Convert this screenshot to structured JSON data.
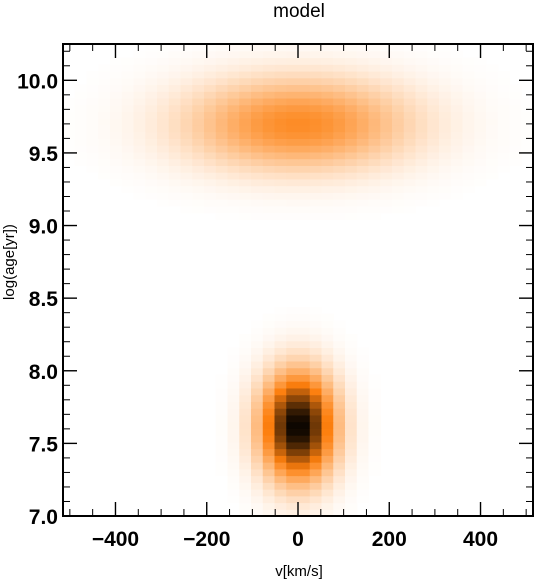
{
  "chart_data": {
    "type": "heatmap",
    "title": "model",
    "xlabel": "v[km/s]",
    "ylabel": "log(age[yr])",
    "xlim": [
      -515,
      515
    ],
    "ylim": [
      7.0,
      10.25
    ],
    "xticks": [
      -400,
      -200,
      0,
      200,
      400
    ],
    "xtick_labels": [
      "−400",
      "−200",
      "0",
      "200",
      "400"
    ],
    "yticks": [
      7.0,
      7.5,
      8.0,
      8.5,
      9.0,
      9.5,
      10.0
    ],
    "ytick_labels": [
      "7.0",
      "7.5",
      "8.0",
      "8.5",
      "9.0",
      "9.5",
      "10.0"
    ],
    "x_minor_step": 50,
    "y_minor_step": 0.1,
    "colormap": "white-orange-black",
    "grid": false,
    "components": [
      {
        "v_center": 0,
        "logage_center": 9.7,
        "v_sigma": 170,
        "logage_sigma": 0.22,
        "relative_peak": 0.45
      },
      {
        "v_center": 0,
        "logage_center": 7.62,
        "v_sigma": 55,
        "logage_sigma": 0.25,
        "relative_peak": 1.0
      }
    ],
    "colors": {
      "low": "#ffffff",
      "mid": "#fd7f0e",
      "high": "#000000"
    }
  }
}
